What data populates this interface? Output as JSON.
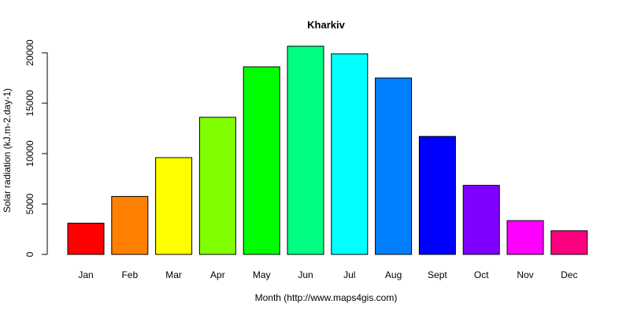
{
  "chart_data": {
    "type": "bar",
    "title": "Kharkiv",
    "xlabel": "Month (http://www.maps4gis.com)",
    "ylabel": "Solar radiation (kJ.m-2.day-1)",
    "ylim": [
      0,
      20000
    ],
    "yticks": [
      "0",
      "5000",
      "10000",
      "15000",
      "20000"
    ],
    "categories": [
      "Jan",
      "Feb",
      "Mar",
      "Apr",
      "May",
      "Jun",
      "Jul",
      "Aug",
      "Sept",
      "Oct",
      "Nov",
      "Dec"
    ],
    "values": [
      3100,
      5750,
      9600,
      13600,
      18600,
      20650,
      19900,
      17500,
      11700,
      6850,
      3350,
      2350
    ],
    "colors": [
      "#FF0000",
      "#FF8000",
      "#FFFF00",
      "#80FF00",
      "#00FF00",
      "#00FF80",
      "#00FFFF",
      "#0080FF",
      "#0000FF",
      "#8000FF",
      "#FF00FF",
      "#FF0080"
    ],
    "grid": false,
    "legend": "none"
  }
}
